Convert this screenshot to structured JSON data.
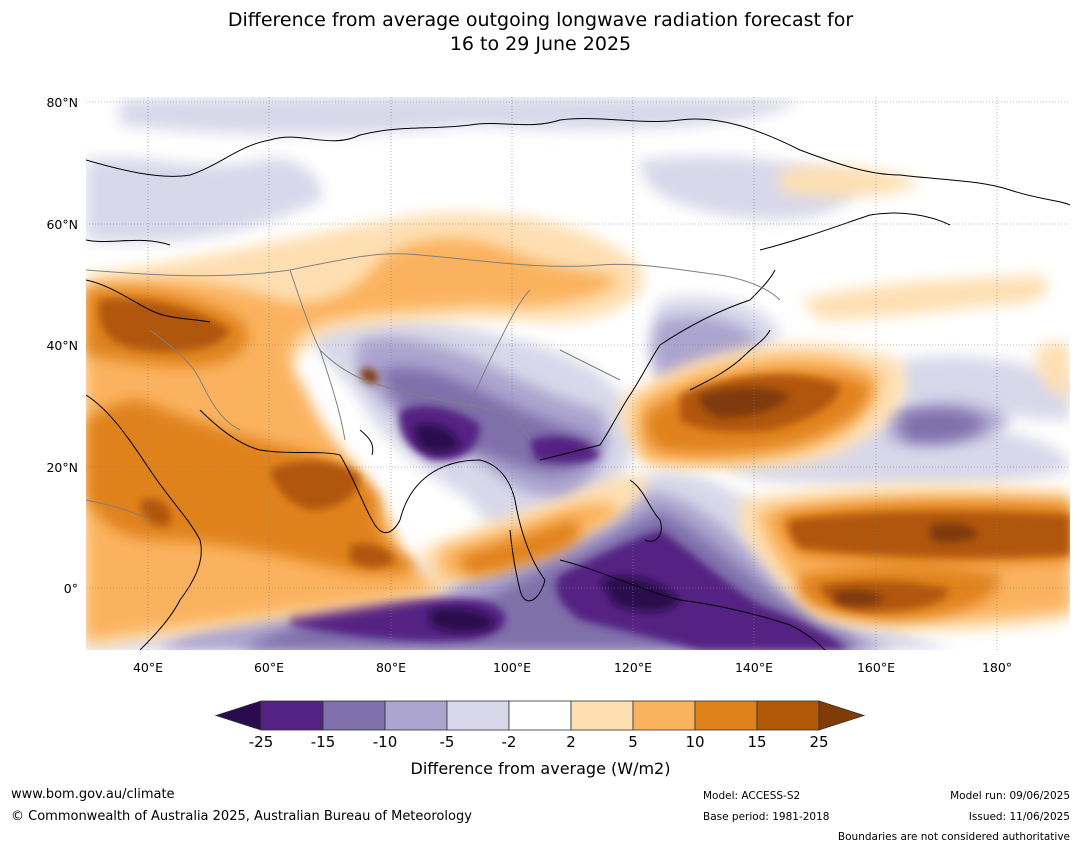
{
  "title": {
    "line1": "Difference from average outgoing longwave radiation forecast for",
    "line2": "16 to 29 June 2025"
  },
  "map": {
    "lat_labels": [
      "80°N",
      "60°N",
      "40°N",
      "20°N",
      "0°"
    ],
    "lon_labels": [
      "40°E",
      "60°E",
      "80°E",
      "100°E",
      "120°E",
      "140°E",
      "160°E",
      "180°"
    ],
    "lat_range": [
      -10,
      80
    ],
    "lon_range": [
      30,
      192
    ]
  },
  "colorbar": {
    "labels": [
      "-25",
      "-15",
      "-10",
      "-5",
      "-2",
      "2",
      "5",
      "10",
      "15",
      "25"
    ],
    "colors": [
      "#2b0a4e",
      "#542283",
      "#7f6faa",
      "#aba4cf",
      "#d8d8ea",
      "#ffffff",
      "#fedfb2",
      "#fbb25e",
      "#e0821b",
      "#b15708",
      "#7f3b08"
    ],
    "title": "Difference from average (W/m2)"
  },
  "footer": {
    "website": "www.bom.gov.au/climate",
    "copyright": "© Commonwealth of Australia 2025, Australian Bureau of Meteorology",
    "model": "Model: ACCESS-S2",
    "base_period": "Base period: 1981-2018",
    "model_run": "Model run: 09/06/2025",
    "issued": "Issued: 11/06/2025",
    "disclaimer": "Boundaries are not considered authoritative"
  }
}
